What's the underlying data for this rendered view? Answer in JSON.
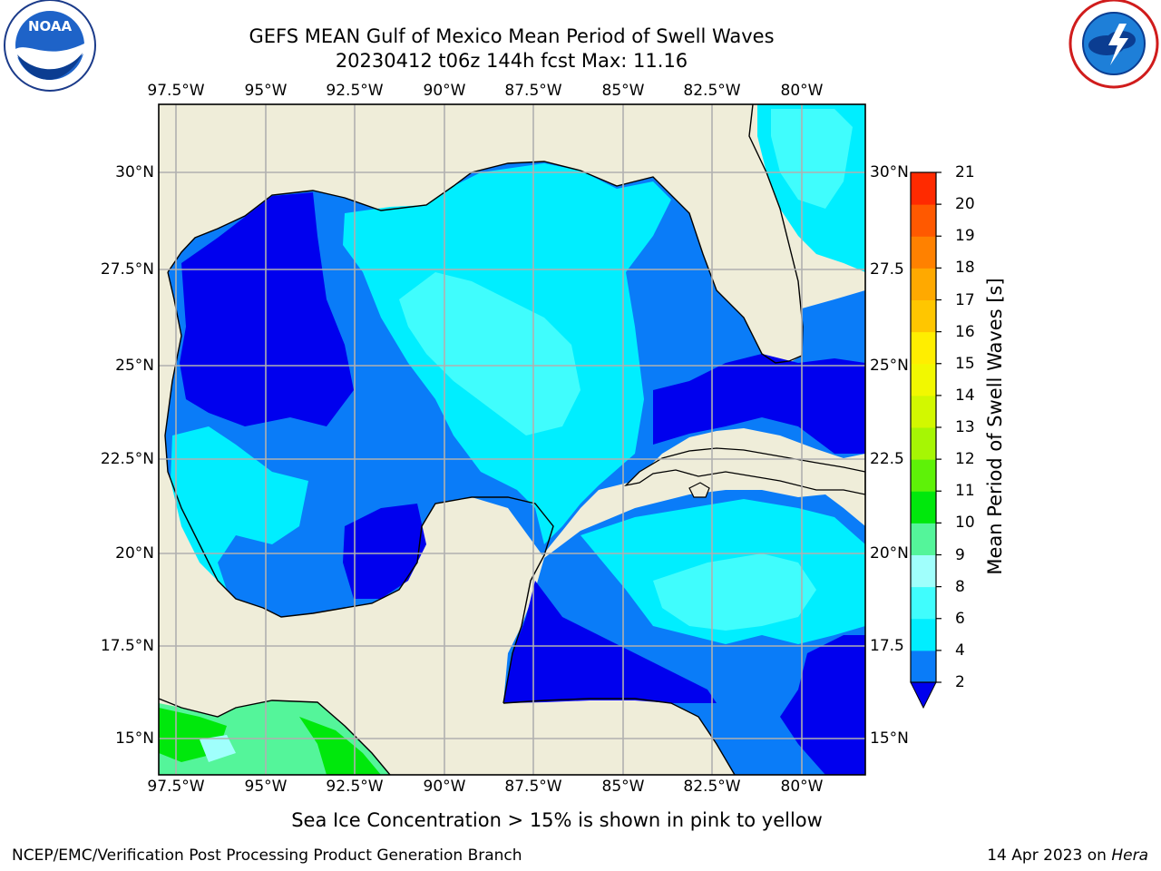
{
  "title": {
    "line1": "GEFS MEAN Gulf of Mexico Mean Period of Swell Waves",
    "line2": "20230412 t06z 144h fcst   Max: 11.16"
  },
  "map": {
    "lon_labels": [
      "97.5°W",
      "95°W",
      "92.5°W",
      "90°W",
      "87.5°W",
      "85°W",
      "82.5°W",
      "80°W"
    ],
    "lat_labels": [
      "30°N",
      "27.5°N",
      "25°N",
      "22.5°N",
      "20°N",
      "17.5°N",
      "15°N"
    ],
    "lat_labels_right": [
      "30°N",
      "27.5",
      "25°N",
      "22.5",
      "20°N",
      "17.5",
      "15°N"
    ],
    "land_color": "#efedd9",
    "grid_color": "#b0b0b0"
  },
  "colorbar": {
    "title": "Mean Period of Swell Waves [s]",
    "ticks": [
      "2",
      "4",
      "6",
      "8",
      "9",
      "10",
      "11",
      "12",
      "13",
      "14",
      "15",
      "16",
      "17",
      "18",
      "19",
      "20",
      "21"
    ],
    "colors": [
      "#0a7cf8",
      "#00eeff",
      "#40fdfd",
      "#a0fffc",
      "#54f59a",
      "#00e80c",
      "#5ef208",
      "#a6f604",
      "#d2f800",
      "#f2f800",
      "#ffee00",
      "#ffc600",
      "#ffa900",
      "#ff8100",
      "#ff5900",
      "#ff2a00",
      "#ff0000"
    ],
    "under_color": "#0000ee"
  },
  "ice_note": "Sea Ice Concentration > 15% is shown in pink to yellow",
  "footer": {
    "left": "NCEP/EMC/Verification Post Processing Product Generation Branch",
    "date": "14 Apr 2023 on",
    "machine": "Hera"
  },
  "logos": {
    "left_icon": "noaa-logo",
    "left_text": "NOAA",
    "right_icon": "nws-logo"
  }
}
